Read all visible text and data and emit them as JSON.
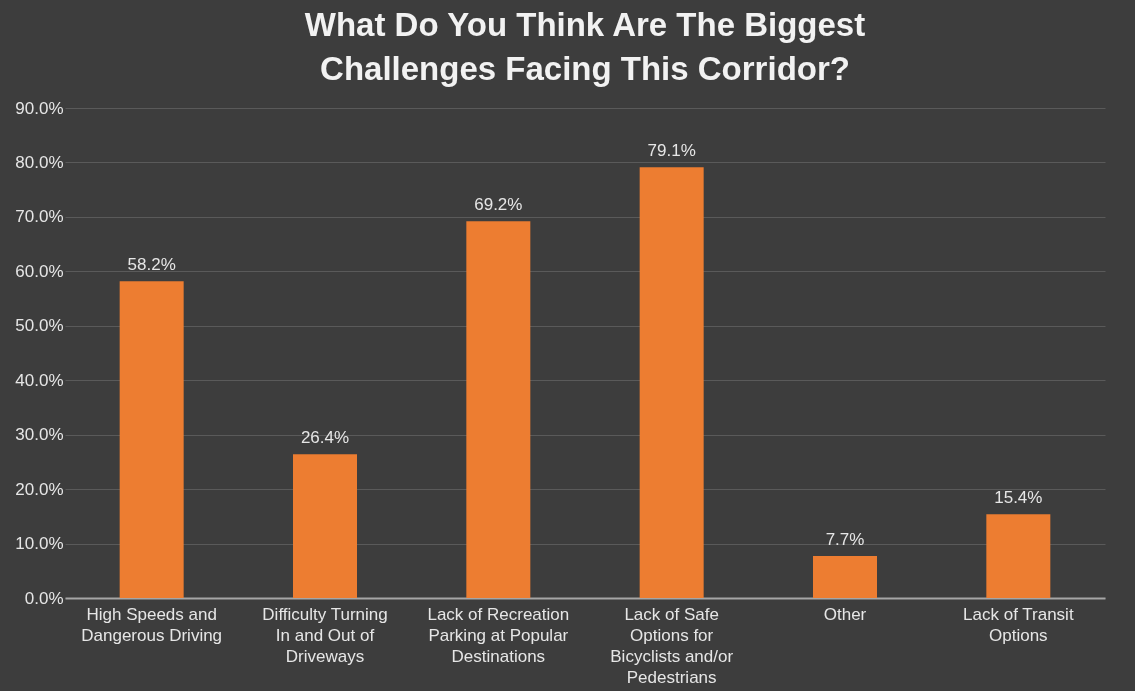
{
  "chart_data": {
    "type": "bar",
    "title": "What Do You Think Are The Biggest Challenges Facing This Corridor?",
    "categories": [
      "High Speeds and Dangerous Driving",
      "Difficulty Turning In and Out of Driveways",
      "Lack of Recreation Parking at Popular Destinations",
      "Lack of Safe Options for Bicyclists and/or Pedestrians",
      "Other",
      "Lack of Transit Options"
    ],
    "values": [
      58.2,
      26.4,
      69.2,
      79.1,
      7.7,
      15.4
    ],
    "value_labels": [
      "58.2%",
      "26.4%",
      "69.2%",
      "79.1%",
      "7.7%",
      "15.4%"
    ],
    "color": "#ed7d31",
    "ylim": [
      0,
      90
    ],
    "yticks": [
      {
        "value": 0,
        "label": "0.0%"
      },
      {
        "value": 10,
        "label": "10.0%"
      },
      {
        "value": 20,
        "label": "20.0%"
      },
      {
        "value": 30,
        "label": "30.0%"
      },
      {
        "value": 40,
        "label": "40.0%"
      },
      {
        "value": 50,
        "label": "50.0%"
      },
      {
        "value": 60,
        "label": "60.0%"
      },
      {
        "value": 70,
        "label": "70.0%"
      },
      {
        "value": 80,
        "label": "80.0%"
      },
      {
        "value": 90,
        "label": "90.0%"
      }
    ],
    "grid": "y"
  }
}
